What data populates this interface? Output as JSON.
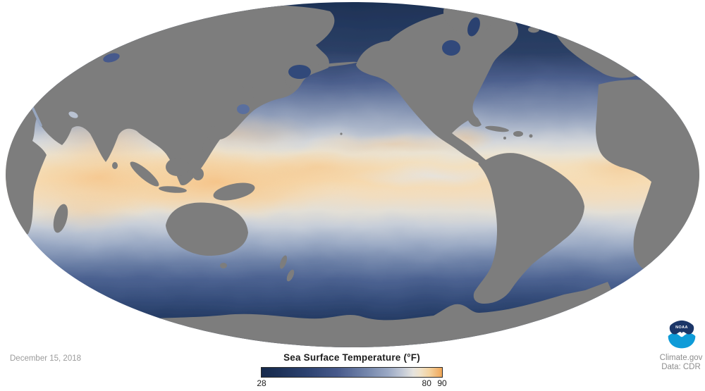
{
  "page": {
    "background_color": "#ffffff"
  },
  "map": {
    "description": "Global sea surface temperature map, Mollweide projection centered on the Pacific",
    "land_color": "#7d7d7d",
    "ocean_polar_color": "#1c2f54",
    "ocean_midlatitude_color": "#6d80a7",
    "ocean_warm_color": "#f5c287"
  },
  "footer": {
    "date_label": "December 15, 2018",
    "colorbar": {
      "title": "Sea Surface Temperature (°F)",
      "gradient_css": [
        "#16294b 0%",
        "#1d3158 10%",
        "#2c4270 25%",
        "#47598b 42%",
        "#7385ab 58%",
        "#9aa8c4 70%",
        "#c2c9d6 78%",
        "#e5e3de 84%",
        "#f0e2c9 88%",
        "#f4d3a0 93%",
        "#f2b977 97%",
        "#f0a757 100%"
      ],
      "ticks": [
        {
          "label": "28",
          "pos_pct": 0
        },
        {
          "label": "80",
          "pos_pct": 91.5
        },
        {
          "label": "90",
          "pos_pct": 100
        }
      ]
    },
    "credits": {
      "site": "Climate.gov",
      "data": "Data: CDR"
    },
    "noaa": {
      "text": "NOAA",
      "dark_blue": "#1b3668",
      "light_blue": "#0e9bd8"
    }
  },
  "chart_data": {
    "type": "heatmap",
    "title": "Sea Surface Temperature (°F)",
    "date": "December 15, 2018",
    "units": "°F",
    "colorbar_range": [
      28,
      90
    ],
    "colorbar_ticks": [
      28,
      80,
      90
    ],
    "colorbar_key_colors": [
      {
        "value": 28,
        "color": "#16294b"
      },
      {
        "value": 72,
        "color": "#c2c9d6"
      },
      {
        "value": 80,
        "color": "#ece4d2"
      },
      {
        "value": 90,
        "color": "#f0a757"
      }
    ],
    "legend_position": "bottom-center",
    "notes": "Land shown gray; coldest water (dark navy) at polar oceans; warmest water (orange) in western Pacific warm pool, Indian Ocean and equatorial Atlantic",
    "credits": [
      "Climate.gov",
      "Data: CDR"
    ]
  }
}
